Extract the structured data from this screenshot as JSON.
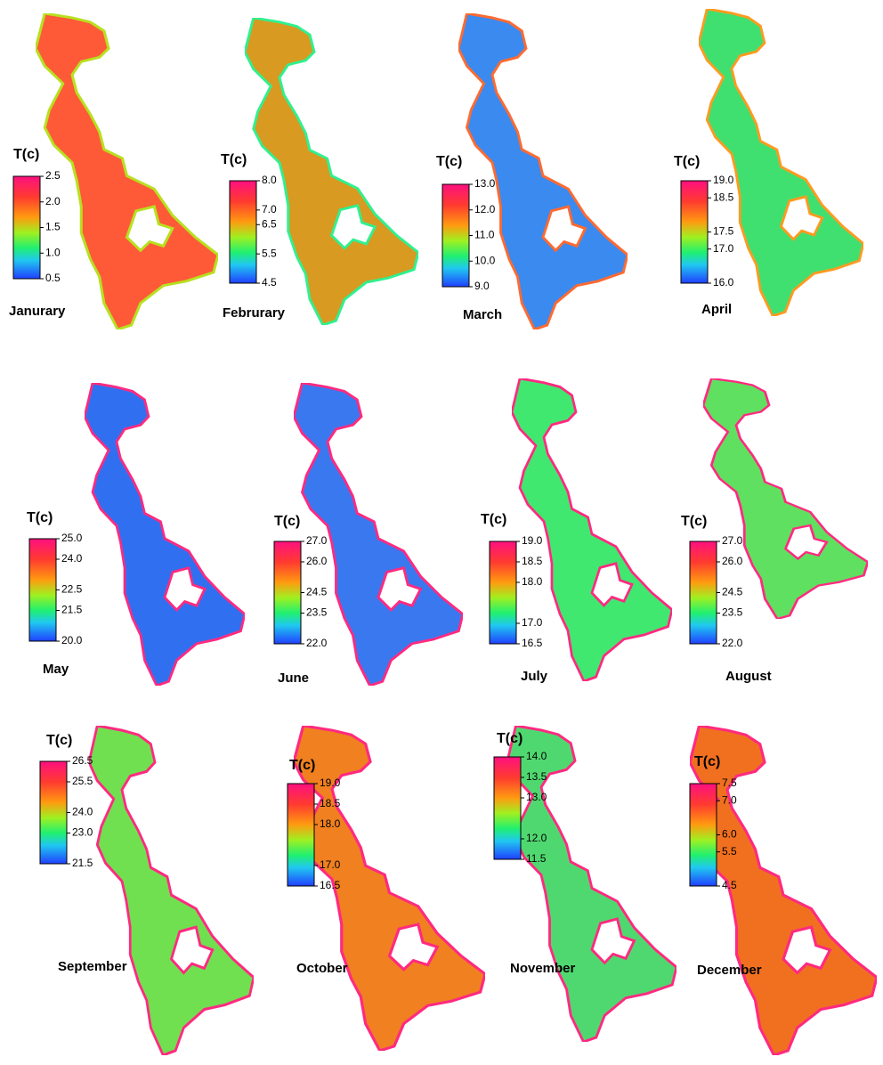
{
  "panels": [
    {
      "month": "Janurary",
      "legend_title": "T(c)",
      "lim": [
        0.5,
        2.5
      ],
      "ticks": [
        0.5,
        {
          "value": 1,
          "label": "1.0"
        },
        1.5,
        {
          "value": 2,
          "label": "2.0"
        },
        2.5
      ]
    },
    {
      "month": "Februrary",
      "legend_title": "T(c)",
      "lim": [
        4.5,
        8
      ],
      "ticks": [
        4.5,
        5.5,
        6.5,
        {
          "value": 7,
          "label": "7.0"
        },
        {
          "value": 8,
          "label": "8.0"
        }
      ]
    },
    {
      "month": "March",
      "legend_title": "T(c)",
      "lim": [
        9,
        13
      ],
      "ticks": [
        {
          "value": 9,
          "label": "9.0"
        },
        {
          "value": 10,
          "label": "10.0"
        },
        {
          "value": 11,
          "label": "11.0"
        },
        {
          "value": 12,
          "label": "12.0"
        },
        {
          "value": 13,
          "label": "13.0"
        }
      ]
    },
    {
      "month": "April",
      "legend_title": "T(c)",
      "lim": [
        16,
        19
      ],
      "ticks": [
        {
          "value": 16,
          "label": "16.0"
        },
        {
          "value": 17,
          "label": "17.0"
        },
        17.5,
        18.5,
        {
          "value": 19,
          "label": "19.0"
        }
      ]
    },
    {
      "month": "May",
      "legend_title": "T(c)",
      "lim": [
        20,
        25
      ],
      "ticks": [
        {
          "value": 20,
          "label": "20.0"
        },
        21.5,
        22.5,
        {
          "value": 24,
          "label": "24.0"
        },
        {
          "value": 25,
          "label": "25.0"
        }
      ]
    },
    {
      "month": "June",
      "legend_title": "T(c)",
      "lim": [
        22,
        27
      ],
      "ticks": [
        {
          "value": 22,
          "label": "22.0"
        },
        23.5,
        24.5,
        {
          "value": 26,
          "label": "26.0"
        },
        {
          "value": 27,
          "label": "27.0"
        }
      ]
    },
    {
      "month": "July",
      "legend_title": "T(c)",
      "lim": [
        16.5,
        19
      ],
      "ticks": [
        16.5,
        {
          "value": 17,
          "label": "17.0"
        },
        {
          "value": 18,
          "label": "18.0"
        },
        18.5,
        {
          "value": 19,
          "label": "19.0"
        }
      ]
    },
    {
      "month": "August",
      "legend_title": "T(c)",
      "lim": [
        22,
        27
      ],
      "ticks": [
        {
          "value": 22,
          "label": "22.0"
        },
        23.5,
        24.5,
        {
          "value": 26,
          "label": "26.0"
        },
        {
          "value": 27,
          "label": "27.0"
        }
      ]
    },
    {
      "month": "September",
      "legend_title": "T(c)",
      "lim": [
        21.5,
        26.5
      ],
      "ticks": [
        21.5,
        {
          "value": 23,
          "label": "23.0"
        },
        {
          "value": 24,
          "label": "24.0"
        },
        25.5,
        26.5
      ]
    },
    {
      "month": "October",
      "legend_title": "T(c)",
      "lim": [
        16.5,
        19
      ],
      "ticks": [
        16.5,
        {
          "value": 17,
          "label": "17.0"
        },
        {
          "value": 18,
          "label": "18.0"
        },
        18.5,
        {
          "value": 19,
          "label": "19.0"
        }
      ]
    },
    {
      "month": "November",
      "legend_title": "T(c)",
      "lim": [
        11.5,
        14
      ],
      "ticks": [
        11.5,
        {
          "value": 12,
          "label": "12.0"
        },
        {
          "value": 13,
          "label": "13.0"
        },
        13.5,
        {
          "value": 14,
          "label": "14.0"
        }
      ]
    },
    {
      "month": "December",
      "legend_title": "T(c)",
      "lim": [
        4.5,
        7.5
      ],
      "ticks": [
        4.5,
        5.5,
        {
          "value": 6,
          "label": "6.0"
        },
        {
          "value": 7,
          "label": "7.0"
        },
        7.5
      ]
    }
  ]
}
